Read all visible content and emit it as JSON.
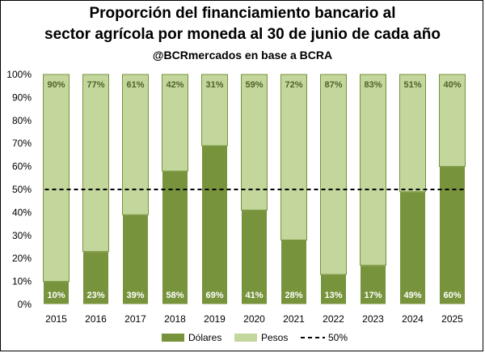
{
  "chart_data": {
    "type": "bar",
    "stacked": true,
    "title_line1": "Proporción del financiamiento bancario al",
    "title_line2": "sector agrícola por moneda al 30 de junio de cada año",
    "subtitle": "@BCRmercados en base a BCRA",
    "categories": [
      "2015",
      "2016",
      "2017",
      "2018",
      "2019",
      "2020",
      "2021",
      "2022",
      "2023",
      "2024",
      "2025"
    ],
    "series": [
      {
        "name": "Dólares",
        "color": "#77933c",
        "values": [
          10,
          23,
          39,
          58,
          69,
          41,
          28,
          13,
          17,
          49,
          60
        ],
        "labels": [
          "10%",
          "23%",
          "39%",
          "58%",
          "69%",
          "41%",
          "28%",
          "13%",
          "17%",
          "49%",
          "60%"
        ]
      },
      {
        "name": "Pesos",
        "color": "#c3d69b",
        "values": [
          90,
          77,
          61,
          42,
          31,
          59,
          72,
          87,
          83,
          51,
          40
        ],
        "labels": [
          "90%",
          "77%",
          "61%",
          "42%",
          "31%",
          "59%",
          "72%",
          "87%",
          "83%",
          "51%",
          "40%"
        ]
      }
    ],
    "reference_line": {
      "name": "50%",
      "value": 50,
      "style": "dashed",
      "color": "#000000"
    },
    "ylim": [
      0,
      100
    ],
    "yticks": [
      0,
      10,
      20,
      30,
      40,
      50,
      60,
      70,
      80,
      90,
      100
    ],
    "ytick_labels": [
      "0%",
      "10%",
      "20%",
      "30%",
      "40%",
      "50%",
      "60%",
      "70%",
      "80%",
      "90%",
      "100%"
    ],
    "legend_position": "bottom",
    "grid": false
  }
}
